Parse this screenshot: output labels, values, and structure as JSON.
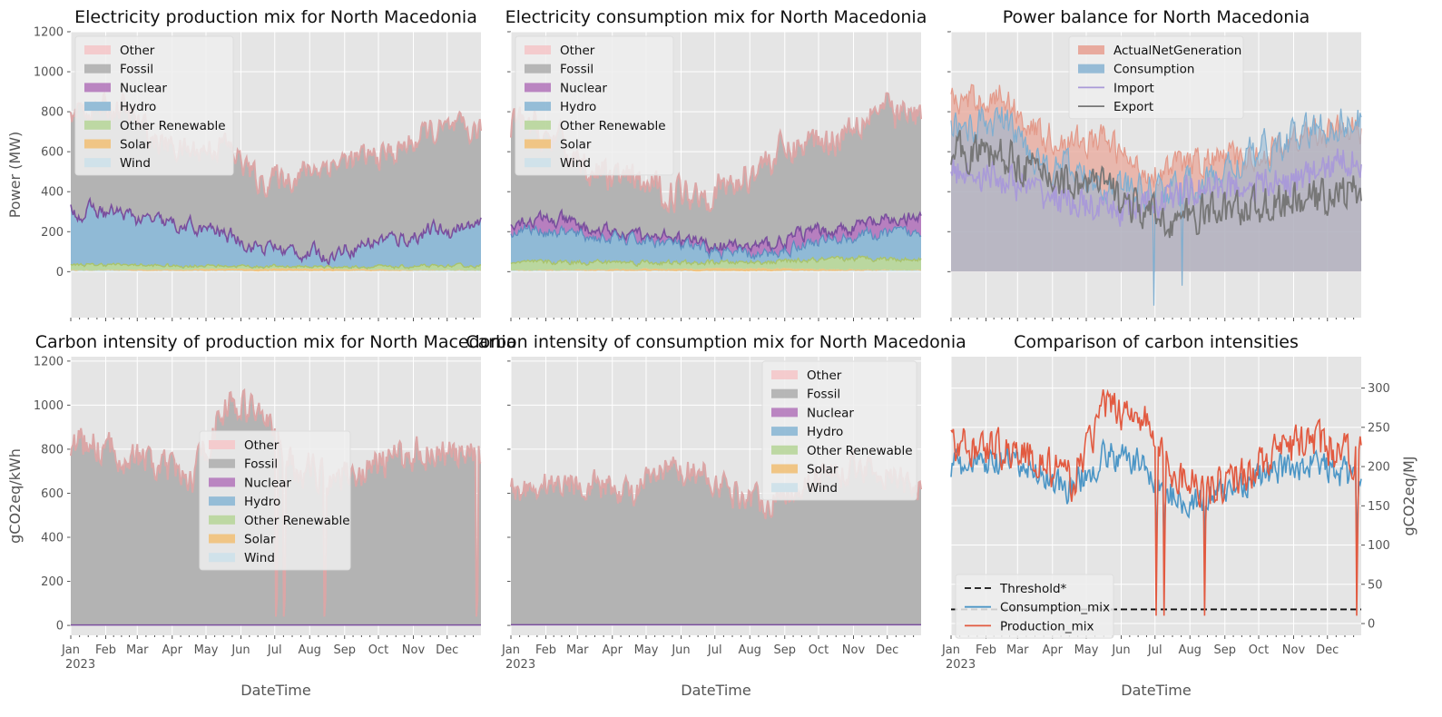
{
  "colors": {
    "Other": "#f4c9cb",
    "Fossil": "#b3b3b3",
    "Nuclear": "#b77fbf",
    "Hydro": "#90bad6",
    "OtherRenewable": "#bad79f",
    "Solar": "#f0c37f",
    "Wind": "#cfe2ea",
    "OtherLine": "#dba6a6",
    "HydroLine": "#7eb0d2",
    "NuclearLine": "#7a4f9e",
    "RenewLine": "#a9c36b",
    "ActualNetGeneration": "#e8a79a",
    "Consumption": "#91b8d5",
    "Import": "#a99ad8",
    "Export": "#777777",
    "ConsumptionMix": "#4c96c6",
    "ProductionMix": "#e25a40",
    "Threshold": "#111111"
  },
  "months": [
    "Jan",
    "Feb",
    "Mar",
    "Apr",
    "May",
    "Jun",
    "Jul",
    "Aug",
    "Sep",
    "Oct",
    "Nov",
    "Dec"
  ],
  "year_label": "2023",
  "xlabel": "DateTime",
  "chart_data": [
    {
      "id": "production-mix",
      "type": "area",
      "title": "Electricity production mix for North Macedonia",
      "ylabel": "Power (MW)",
      "ylim": [
        -230,
        1200
      ],
      "yticks": [
        0,
        200,
        400,
        600,
        800,
        1000,
        1200
      ],
      "legend": [
        "Other",
        "Fossil",
        "Nuclear",
        "Hydro",
        "Other Renewable",
        "Solar",
        "Wind"
      ],
      "legend_loc": "upper left",
      "monthly": {
        "wind": [
          5,
          5,
          4,
          4,
          4,
          3,
          3,
          3,
          4,
          4,
          5,
          5
        ],
        "solar": [
          2,
          4,
          6,
          8,
          10,
          11,
          12,
          11,
          8,
          6,
          3,
          2
        ],
        "renewable": [
          28,
          26,
          20,
          18,
          15,
          12,
          10,
          10,
          12,
          15,
          18,
          22
        ],
        "hydro": [
          270,
          250,
          210,
          190,
          160,
          100,
          75,
          60,
          120,
          140,
          170,
          190
        ],
        "total": [
          810,
          820,
          650,
          600,
          640,
          450,
          480,
          540,
          560,
          600,
          700,
          700
        ]
      }
    },
    {
      "id": "consumption-mix",
      "type": "area",
      "title": "Electricity consumption mix for North Macedonia",
      "ylim": [
        -230,
        1200
      ],
      "yticks": [
        0,
        200,
        400,
        600,
        800,
        1000,
        1200
      ],
      "legend": [
        "Other",
        "Fossil",
        "Nuclear",
        "Hydro",
        "Other Renewable",
        "Solar",
        "Wind"
      ],
      "legend_loc": "upper left",
      "monthly": {
        "wind": [
          5,
          5,
          4,
          4,
          4,
          3,
          3,
          3,
          4,
          4,
          5,
          5
        ],
        "solar": [
          2,
          4,
          6,
          8,
          10,
          12,
          14,
          13,
          10,
          8,
          4,
          2
        ],
        "renewable": [
          40,
          40,
          38,
          35,
          30,
          28,
          30,
          32,
          40,
          50,
          60,
          55
        ],
        "hydro": [
          200,
          190,
          160,
          150,
          140,
          100,
          80,
          70,
          130,
          150,
          170,
          180
        ],
        "nuclear": [
          260,
          250,
          200,
          180,
          170,
          140,
          120,
          130,
          190,
          210,
          240,
          260
        ],
        "total": [
          730,
          620,
          500,
          440,
          400,
          400,
          430,
          560,
          640,
          680,
          820,
          780
        ]
      }
    },
    {
      "id": "power-balance",
      "type": "area",
      "title": "Power balance for North Macedonia",
      "ylim": [
        -230,
        1200
      ],
      "yticks": [
        0,
        200,
        400,
        600,
        800,
        1000,
        1200
      ],
      "legend": [
        "ActualNetGeneration",
        "Consumption",
        "Import",
        "Export"
      ],
      "legend_loc": "upper center",
      "monthly": {
        "generation": [
          850,
          880,
          700,
          640,
          660,
          500,
          520,
          560,
          560,
          620,
          700,
          700
        ],
        "consumption": [
          730,
          760,
          580,
          500,
          450,
          400,
          420,
          450,
          560,
          620,
          700,
          750
        ],
        "import": [
          500,
          460,
          400,
          350,
          300,
          320,
          380,
          420,
          430,
          440,
          480,
          560
        ],
        "export": [
          600,
          580,
          500,
          450,
          430,
          300,
          250,
          300,
          320,
          340,
          360,
          400
        ]
      }
    },
    {
      "id": "production-ci",
      "type": "area",
      "title": "Carbon intensity of production mix for North Macedonia",
      "ylabel": "gCO2eq/kWh",
      "ylim": [
        -45,
        1220
      ],
      "yticks": [
        0,
        200,
        400,
        600,
        800,
        1000,
        1200
      ],
      "legend": [
        "Other",
        "Fossil",
        "Nuclear",
        "Hydro",
        "Other Renewable",
        "Solar",
        "Wind"
      ],
      "legend_loc": "center",
      "monthly": {
        "total": [
          820,
          780,
          720,
          650,
          1000,
          980,
          720,
          680,
          700,
          760,
          800,
          760
        ],
        "nuclear": [
          2,
          2,
          2,
          2,
          2,
          2,
          2,
          2,
          2,
          2,
          2,
          2
        ]
      }
    },
    {
      "id": "consumption-ci",
      "type": "area",
      "title": "Carbon intensity of consumption mix for North Macedonia",
      "ylim": [
        -45,
        1220
      ],
      "yticks": [
        0,
        200,
        400,
        600,
        800,
        1000,
        1200
      ],
      "legend": [
        "Other",
        "Fossil",
        "Nuclear",
        "Hydro",
        "Other Renewable",
        "Solar",
        "Wind"
      ],
      "legend_loc": "upper right",
      "monthly": {
        "total": [
          620,
          650,
          640,
          600,
          700,
          700,
          600,
          560,
          640,
          700,
          720,
          640
        ],
        "nuclear": [
          3,
          3,
          3,
          3,
          3,
          3,
          3,
          3,
          3,
          3,
          3,
          3
        ]
      }
    },
    {
      "id": "ci-comparison",
      "type": "line",
      "title": "Comparison of carbon intensities",
      "ylabel": "gCO2eq/MJ",
      "ylim": [
        -15,
        340
      ],
      "yticks": [
        0,
        50,
        100,
        150,
        200,
        250,
        300
      ],
      "yaxis_side": "right",
      "legend": [
        "Threshold*",
        "Consumption_mix",
        "Production_mix"
      ],
      "legend_loc": "lower left",
      "threshold": 18,
      "monthly": {
        "consumption": [
          200,
          205,
          195,
          170,
          215,
          205,
          160,
          155,
          180,
          195,
          205,
          190
        ],
        "production": [
          225,
          225,
          210,
          180,
          275,
          270,
          190,
          175,
          190,
          215,
          235,
          215
        ]
      }
    }
  ]
}
